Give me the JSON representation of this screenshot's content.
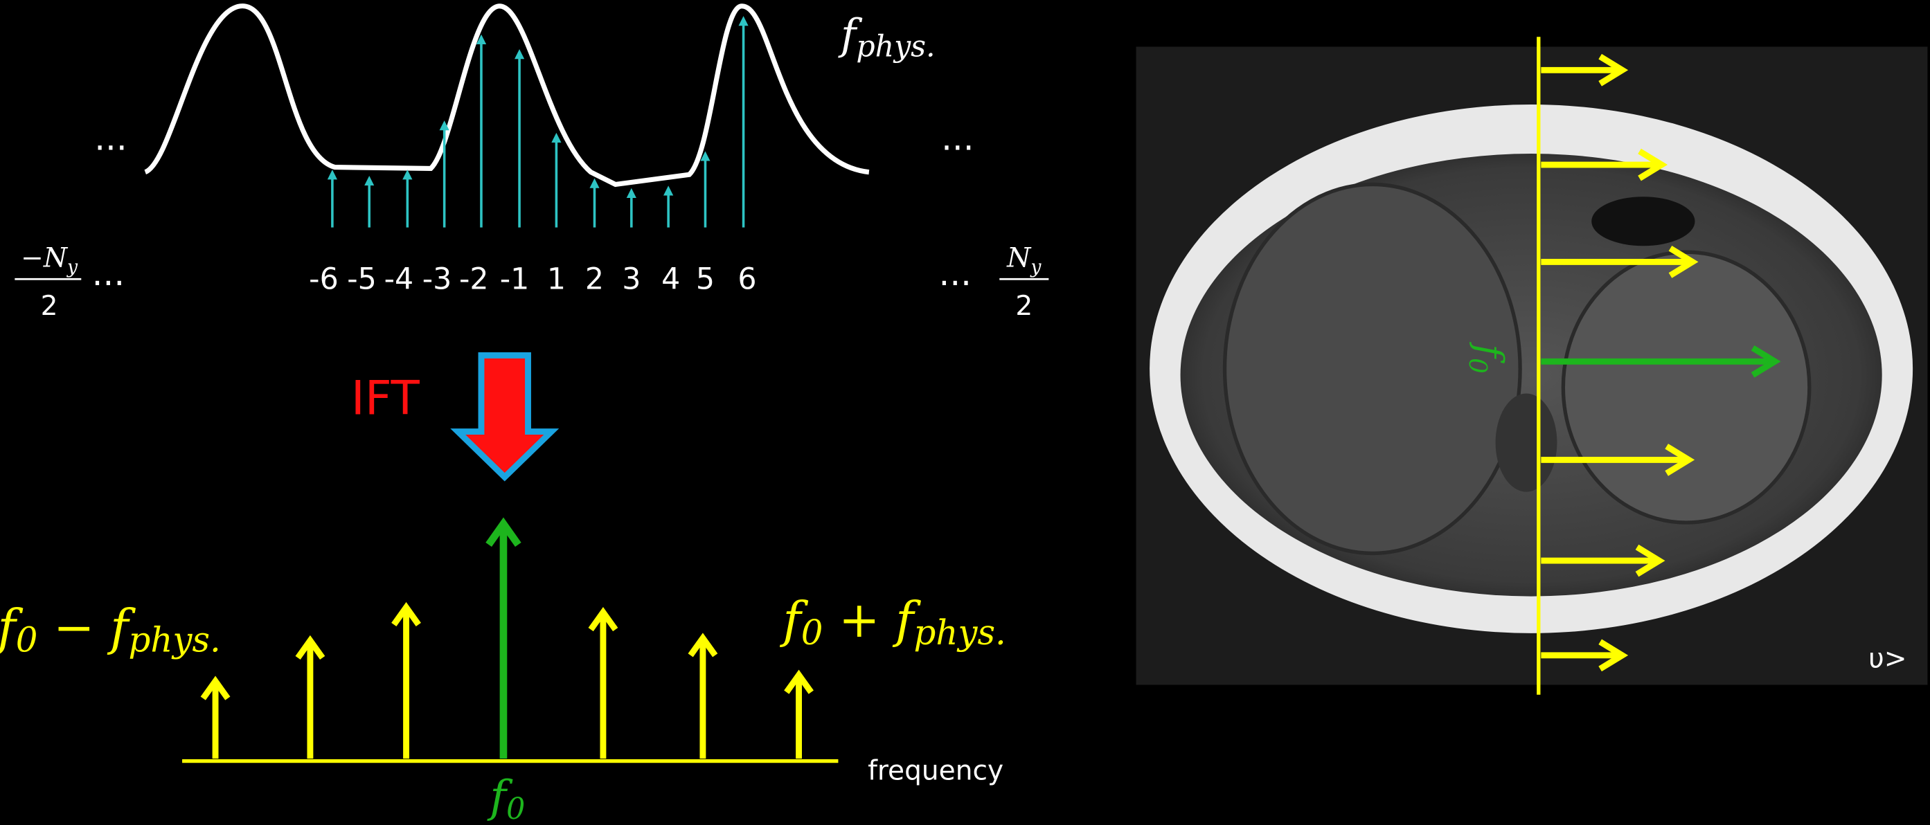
{
  "top": {
    "label": {
      "base": "f",
      "sub": "phys."
    },
    "ellipsis_left": "...",
    "ellipsis_right": "...",
    "axis_left": {
      "num": "−N",
      "sub": "y",
      "den": "2",
      "ellipsis": "..."
    },
    "axis_right": {
      "num": "N",
      "sub": "y",
      "den": "2",
      "ellipsis": "..."
    },
    "indices": [
      "-6",
      "-5",
      "-4",
      "-3",
      "-2",
      "-1",
      "1",
      "2",
      "3",
      "4",
      "5",
      "6"
    ]
  },
  "ift": "IFT",
  "bottom": {
    "left_label": {
      "base": "f",
      "sub": "0",
      "op": " − ",
      "base2": "f",
      "sub2": "phys."
    },
    "right_label": {
      "base": "f",
      "sub": "0",
      "op": " + ",
      "base2": "f",
      "sub2": "phys."
    },
    "axis_label": "frequency",
    "center_label": {
      "base": "f",
      "sub": "0"
    }
  },
  "image": {
    "f0_label": {
      "base": "f",
      "sub": "0"
    },
    "corner": "υ>"
  }
}
